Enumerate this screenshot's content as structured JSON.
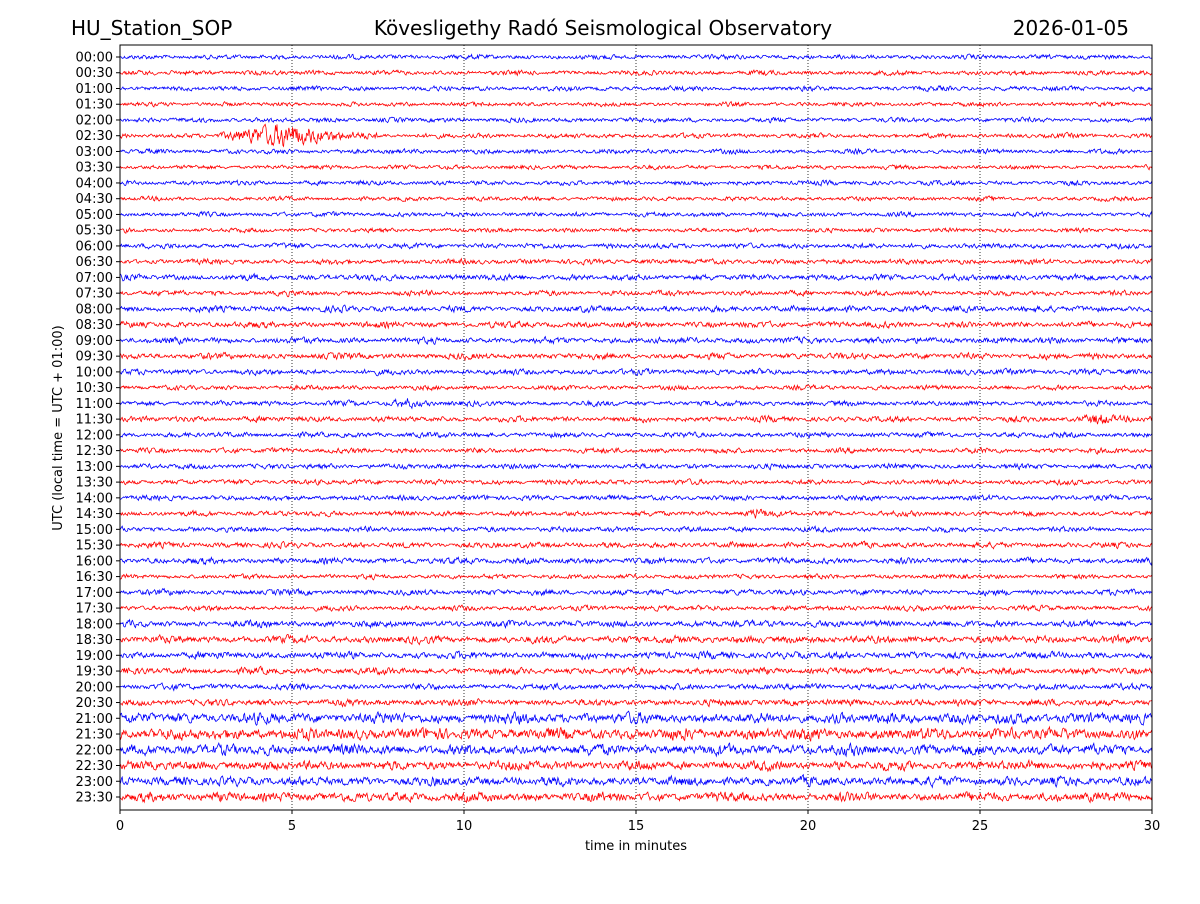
{
  "chart_data": {
    "type": "line",
    "title_left": "HU_Station_SOP",
    "title": "Kövesligethy Radó Seismological Observatory",
    "title_right": "2026-01-05",
    "xlabel": "time in minutes",
    "ylabel": "UTC (local time = UTC + 01:00)",
    "xlim": [
      0,
      30
    ],
    "xticks": [
      "0",
      "5",
      "10",
      "15",
      "20",
      "25",
      "30"
    ],
    "grid": "vertical dotted lines every 5 minutes",
    "colors": [
      "#0000ff",
      "#ff0000"
    ],
    "rows": [
      {
        "label": "00:00",
        "amplitude": 1.0
      },
      {
        "label": "00:30",
        "amplitude": 1.0
      },
      {
        "label": "01:00",
        "amplitude": 1.0
      },
      {
        "label": "01:30",
        "amplitude": 0.9
      },
      {
        "label": "02:00",
        "amplitude": 1.0
      },
      {
        "label": "02:30",
        "amplitude": 1.0
      },
      {
        "label": "03:00",
        "amplitude": 1.0
      },
      {
        "label": "03:30",
        "amplitude": 0.9
      },
      {
        "label": "04:00",
        "amplitude": 1.0
      },
      {
        "label": "04:30",
        "amplitude": 0.9
      },
      {
        "label": "05:00",
        "amplitude": 1.0
      },
      {
        "label": "05:30",
        "amplitude": 0.9
      },
      {
        "label": "06:00",
        "amplitude": 1.1
      },
      {
        "label": "06:30",
        "amplitude": 1.1
      },
      {
        "label": "07:00",
        "amplitude": 1.3
      },
      {
        "label": "07:30",
        "amplitude": 1.1
      },
      {
        "label": "08:00",
        "amplitude": 1.3
      },
      {
        "label": "08:30",
        "amplitude": 1.3
      },
      {
        "label": "09:00",
        "amplitude": 1.3
      },
      {
        "label": "09:30",
        "amplitude": 1.3
      },
      {
        "label": "10:00",
        "amplitude": 1.2
      },
      {
        "label": "10:30",
        "amplitude": 1.0
      },
      {
        "label": "11:00",
        "amplitude": 1.1
      },
      {
        "label": "11:30",
        "amplitude": 1.2
      },
      {
        "label": "12:00",
        "amplitude": 1.1
      },
      {
        "label": "12:30",
        "amplitude": 1.1
      },
      {
        "label": "13:00",
        "amplitude": 1.1
      },
      {
        "label": "13:30",
        "amplitude": 1.1
      },
      {
        "label": "14:00",
        "amplitude": 1.1
      },
      {
        "label": "14:30",
        "amplitude": 1.1
      },
      {
        "label": "15:00",
        "amplitude": 1.1
      },
      {
        "label": "15:30",
        "amplitude": 1.2
      },
      {
        "label": "16:00",
        "amplitude": 1.3
      },
      {
        "label": "16:30",
        "amplitude": 1.0
      },
      {
        "label": "17:00",
        "amplitude": 1.2
      },
      {
        "label": "17:30",
        "amplitude": 1.1
      },
      {
        "label": "18:00",
        "amplitude": 1.4
      },
      {
        "label": "18:30",
        "amplitude": 1.6
      },
      {
        "label": "19:00",
        "amplitude": 1.5
      },
      {
        "label": "19:30",
        "amplitude": 1.4
      },
      {
        "label": "20:00",
        "amplitude": 1.3
      },
      {
        "label": "20:30",
        "amplitude": 1.4
      },
      {
        "label": "21:00",
        "amplitude": 2.3
      },
      {
        "label": "21:30",
        "amplitude": 2.5
      },
      {
        "label": "22:00",
        "amplitude": 2.3
      },
      {
        "label": "22:30",
        "amplitude": 2.0
      },
      {
        "label": "23:00",
        "amplitude": 2.0
      },
      {
        "label": "23:30",
        "amplitude": 2.0
      }
    ],
    "events": [
      {
        "row": "02:30",
        "start_min": 2.8,
        "peak_min": 4.8,
        "end_min": 7.5,
        "amplitude": 5.5
      },
      {
        "row": "11:00",
        "start_min": 7.8,
        "peak_min": 8.4,
        "end_min": 9.2,
        "amplitude": 1.8
      },
      {
        "row": "11:30",
        "start_min": 27.8,
        "peak_min": 28.5,
        "end_min": 29.6,
        "amplitude": 1.8
      },
      {
        "row": "14:30",
        "start_min": 18.0,
        "peak_min": 18.5,
        "end_min": 19.2,
        "amplitude": 1.6
      }
    ]
  }
}
